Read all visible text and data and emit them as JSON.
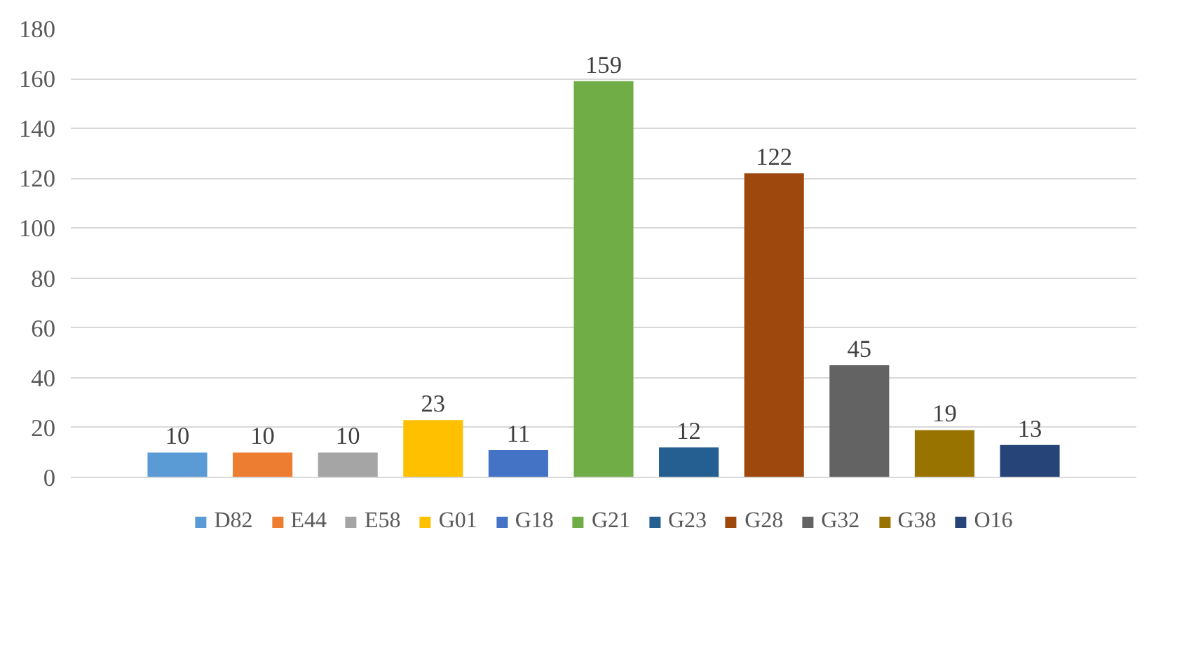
{
  "chart_data": {
    "type": "bar",
    "categories": [
      null
    ],
    "series": [
      {
        "name": "D82",
        "color": "#5b9bd5",
        "values": [
          10
        ]
      },
      {
        "name": "E44",
        "color": "#ed7d31",
        "values": [
          10
        ]
      },
      {
        "name": "E58",
        "color": "#a5a5a5",
        "values": [
          10
        ]
      },
      {
        "name": "G01",
        "color": "#ffc000",
        "values": [
          23
        ]
      },
      {
        "name": "G18",
        "color": "#4472c4",
        "values": [
          11
        ]
      },
      {
        "name": "G21",
        "color": "#70ad47",
        "values": [
          159
        ]
      },
      {
        "name": "G23",
        "color": "#255e91",
        "values": [
          12
        ]
      },
      {
        "name": "G28",
        "color": "#9e480e",
        "values": [
          122
        ]
      },
      {
        "name": "G32",
        "color": "#636363",
        "values": [
          45
        ]
      },
      {
        "name": "G38",
        "color": "#997300",
        "values": [
          19
        ]
      },
      {
        "name": "O16",
        "color": "#264478",
        "values": [
          13
        ]
      }
    ],
    "ylim": [
      0,
      180
    ],
    "yticks": [
      0,
      20,
      40,
      60,
      80,
      100,
      120,
      140,
      160,
      180
    ],
    "grid": "y",
    "legend": "bottom",
    "data_labels": true
  }
}
